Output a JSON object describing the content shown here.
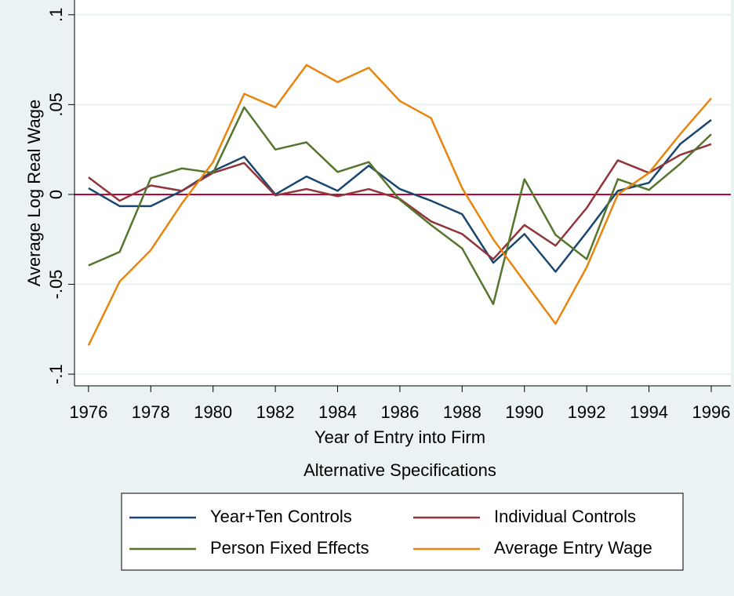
{
  "chart_data": {
    "type": "line",
    "x_label": "Year of Entry into Firm",
    "y_label": "Average Log Real Wage",
    "note": "Alternative Specifications",
    "x": [
      1976,
      1977,
      1978,
      1979,
      1980,
      1981,
      1982,
      1983,
      1984,
      1985,
      1986,
      1987,
      1988,
      1989,
      1990,
      1991,
      1992,
      1993,
      1994,
      1995,
      1996
    ],
    "series": [
      {
        "name": "Year+Ten Controls",
        "color": "#1a476f",
        "values": [
          0.0035,
          -0.0065,
          -0.0065,
          0.002,
          0.013,
          0.021,
          0.0,
          0.01,
          0.002,
          0.016,
          0.003,
          -0.0035,
          -0.011,
          -0.038,
          -0.022,
          -0.043,
          -0.021,
          0.002,
          0.0065,
          0.028,
          0.0415
        ]
      },
      {
        "name": "Individual Controls",
        "color": "#90353b",
        "values": [
          0.0095,
          -0.0035,
          0.005,
          0.002,
          0.012,
          0.0175,
          -0.0005,
          0.003,
          -0.001,
          0.003,
          -0.0025,
          -0.015,
          -0.022,
          -0.036,
          -0.017,
          -0.0285,
          -0.0075,
          0.019,
          0.012,
          0.022,
          0.028
        ]
      },
      {
        "name": "Person Fixed Effects",
        "color": "#55752f",
        "values": [
          -0.0395,
          -0.032,
          0.009,
          0.0145,
          0.012,
          0.0485,
          0.025,
          0.029,
          0.0125,
          0.018,
          -0.003,
          -0.017,
          -0.03,
          -0.061,
          0.0085,
          -0.0225,
          -0.036,
          0.0085,
          0.0025,
          0.017,
          0.0335
        ]
      },
      {
        "name": "Average Entry Wage",
        "color": "#e8850e",
        "values": [
          -0.084,
          -0.0485,
          -0.031,
          -0.005,
          0.018,
          0.056,
          0.0485,
          0.072,
          0.0625,
          0.0705,
          0.052,
          0.0425,
          0.0035,
          -0.025,
          -0.0485,
          -0.072,
          -0.0405,
          0.0,
          0.012,
          0.0335,
          0.0535
        ]
      }
    ],
    "xlim": [
      1975.55,
      1996.63
    ],
    "ylim": [
      -0.1065,
      0.1082
    ],
    "xticks": [
      1976,
      1978,
      1980,
      1982,
      1984,
      1986,
      1988,
      1990,
      1992,
      1994,
      1996
    ],
    "yticks": [
      {
        "value": -0.1,
        "label": "-.1"
      },
      {
        "value": -0.05,
        "label": "-.05"
      },
      0,
      {
        "value": 0.05,
        "label": ".05"
      },
      {
        "value": 0.1,
        "label": ".1"
      }
    ],
    "grid": true,
    "yline": {
      "value": 0,
      "color": "#c10534"
    }
  }
}
